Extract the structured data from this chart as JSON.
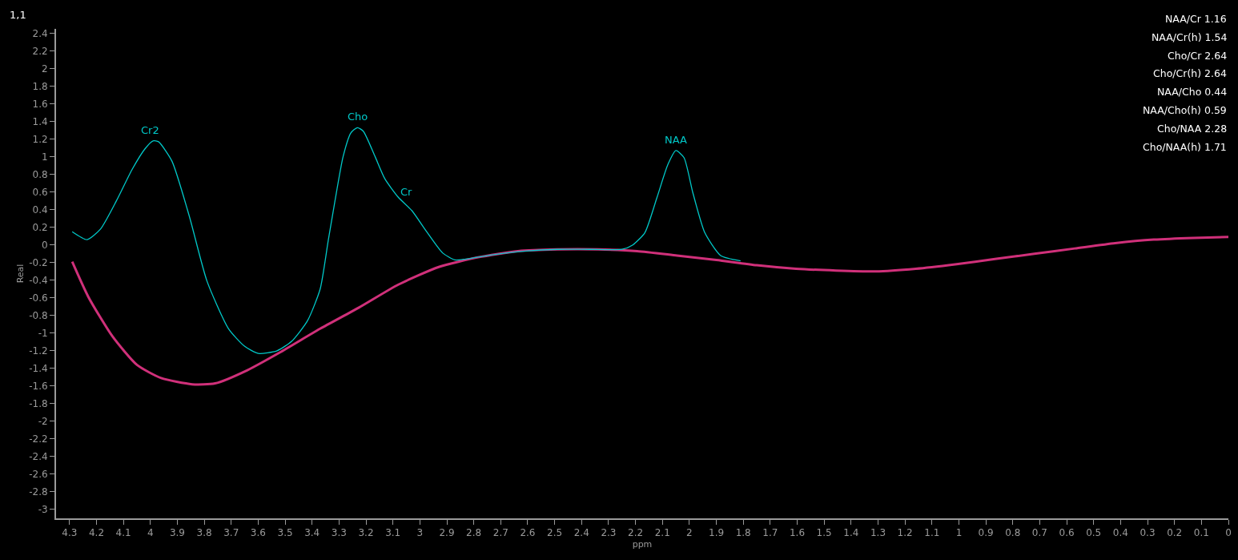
{
  "chart_data": {
    "type": "line",
    "xlabel": "ppm",
    "ylabel": "Real",
    "xlim": [
      4.35,
      0
    ],
    "ylim": [
      -3.1,
      2.45
    ],
    "xticks": [
      4.3,
      4.2,
      4.1,
      4,
      3.9,
      3.8,
      3.7,
      3.6,
      3.5,
      3.4,
      3.3,
      3.2,
      3.1,
      3,
      2.9,
      2.8,
      2.7,
      2.6,
      2.5,
      2.4,
      2.3,
      2.2,
      2.1,
      2,
      1.9,
      1.8,
      1.7,
      1.6,
      1.5,
      1.4,
      1.3,
      1.2,
      1.1,
      1,
      0.9,
      0.8,
      0.7,
      0.6,
      0.5,
      0.4,
      0.3,
      0.2,
      0.1,
      0
    ],
    "yticks": [
      2.4,
      2.2,
      2,
      1.8,
      1.6,
      1.4,
      1.2,
      1,
      0.8,
      0.6,
      0.4,
      0.2,
      0,
      -0.2,
      -0.4,
      -0.6,
      -0.8,
      -1,
      -1.2,
      -1.4,
      -1.6,
      -1.8,
      -2,
      -2.2,
      -2.4,
      -2.6,
      -2.8,
      -3
    ],
    "grid": false,
    "marker": "none",
    "line_style": "solid",
    "series": [
      {
        "color": "#00c8c8",
        "x": [
          4.29,
          4.235,
          4.185,
          4.126,
          4.067,
          4.02,
          3.99,
          3.97,
          3.92,
          3.855,
          3.79,
          3.71,
          3.65,
          3.6,
          3.53,
          3.475,
          3.417,
          3.37,
          3.34,
          3.315,
          3.285,
          3.256,
          3.232,
          3.21,
          3.166,
          3.13,
          3.08,
          3.03,
          2.975,
          2.916,
          2.87,
          2.83,
          2.725,
          2.607,
          2.49,
          2.37,
          2.25,
          2.21,
          2.165,
          2.12,
          2.08,
          2.05,
          2.02,
          1.987,
          1.943,
          1.884,
          1.81
        ],
        "values": [
          0.15,
          0.06,
          0.18,
          0.5,
          0.86,
          1.09,
          1.18,
          1.17,
          0.95,
          0.32,
          -0.41,
          -0.95,
          -1.15,
          -1.23,
          -1.2,
          -1.09,
          -0.86,
          -0.5,
          0.05,
          0.5,
          1.0,
          1.27,
          1.33,
          1.29,
          1.0,
          0.75,
          0.54,
          0.39,
          0.15,
          -0.09,
          -0.17,
          -0.16,
          -0.11,
          -0.07,
          -0.05,
          -0.05,
          -0.05,
          0,
          0.14,
          0.54,
          0.91,
          1.07,
          0.99,
          0.59,
          0.14,
          -0.12,
          -0.18
        ]
      },
      {
        "color": "#d0307a",
        "x": [
          4.29,
          4.23,
          4.14,
          4.05,
          3.96,
          3.845,
          3.76,
          3.64,
          3.52,
          3.37,
          3.226,
          3.08,
          2.93,
          2.784,
          2.636,
          2.49,
          2.34,
          2.194,
          2.046,
          1.9,
          1.75,
          1.604,
          1.456,
          1.31,
          1.16,
          1.014,
          0.866,
          0.72,
          0.57,
          0.42,
          0.277,
          0.13,
          0
        ],
        "values": [
          -0.19,
          -0.59,
          -1.04,
          -1.36,
          -1.51,
          -1.58,
          -1.57,
          -1.42,
          -1.22,
          -0.95,
          -0.71,
          -0.45,
          -0.25,
          -0.14,
          -0.07,
          -0.05,
          -0.05,
          -0.07,
          -0.12,
          -0.17,
          -0.23,
          -0.27,
          -0.29,
          -0.3,
          -0.27,
          -0.22,
          -0.16,
          -0.1,
          -0.04,
          0.02,
          0.06,
          0.08,
          0.09
        ]
      }
    ],
    "annotations": [
      {
        "text": "Cr2",
        "x": 4.0,
        "y": 1.18
      },
      {
        "text": "Cho",
        "x": 3.232,
        "y": 1.33
      },
      {
        "text": "Cr",
        "x": 3.05,
        "y": 0.48
      },
      {
        "text": "NAA",
        "x": 2.05,
        "y": 1.07
      },
      "1,1",
      "NAA/Cr 1.16",
      "NAA/Cr(h) 1.54",
      "Cho/Cr 2.64",
      "Cho/Cr(h) 2.64",
      "NAA/Cho 0.44",
      "NAA/Cho(h) 0.59",
      "Cho/NAA 2.28",
      "Cho/NAA(h) 1.71"
    ]
  }
}
